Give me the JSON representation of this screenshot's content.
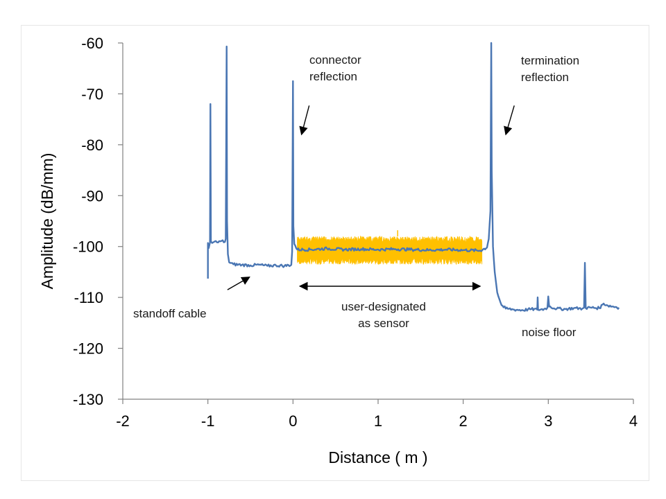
{
  "chart_data": {
    "type": "line",
    "xlabel": "Distance ( m )",
    "ylabel": "Amplitude (dB/mm)",
    "xlim": [
      -2,
      4
    ],
    "ylim": [
      -130,
      -60
    ],
    "x_ticks": [
      "-2",
      "-1",
      "0",
      "1",
      "2",
      "3",
      "4"
    ],
    "y_ticks": [
      "-60",
      "-70",
      "-80",
      "-90",
      "-100",
      "-110",
      "-120",
      "-130"
    ],
    "grid": false,
    "legend": "none",
    "colors": {
      "trace": "#4a76b3",
      "sensor_band": "#ffc000",
      "axis": "#808080",
      "arrow": "#000000"
    },
    "series": [
      {
        "role": "main-trace",
        "points": [
          [
            -1.0,
            -106.3
          ],
          [
            -1.0,
            -99.3
          ],
          [
            -0.99,
            -100.3
          ],
          [
            -0.975,
            -99.2
          ],
          [
            -0.97,
            -72.0
          ],
          [
            -0.965,
            -99.0
          ],
          [
            -0.95,
            -99.3
          ],
          [
            -0.92,
            -99.0
          ],
          [
            -0.88,
            -99.2
          ],
          [
            -0.84,
            -98.9
          ],
          [
            -0.8,
            -99.1
          ],
          [
            -0.79,
            -98.5
          ],
          [
            -0.78,
            -60.7
          ],
          [
            -0.775,
            -95.0
          ],
          [
            -0.765,
            -101.5
          ],
          [
            -0.75,
            -103.1
          ],
          [
            -0.7,
            -103.5
          ],
          [
            -0.6,
            -103.6
          ],
          [
            -0.5,
            -103.7
          ],
          [
            -0.4,
            -103.6
          ],
          [
            -0.3,
            -103.8
          ],
          [
            -0.2,
            -103.7
          ],
          [
            -0.1,
            -103.8
          ],
          [
            -0.02,
            -103.6
          ],
          [
            -0.01,
            -101.0
          ],
          [
            0.0,
            -67.5
          ],
          [
            0.005,
            -96.0
          ],
          [
            0.015,
            -99.5
          ],
          [
            0.05,
            -100.6
          ],
          [
            0.2,
            -100.6
          ],
          [
            0.4,
            -100.4
          ],
          [
            0.6,
            -100.6
          ],
          [
            0.8,
            -100.5
          ],
          [
            1.0,
            -100.6
          ],
          [
            1.2,
            -100.5
          ],
          [
            1.4,
            -100.6
          ],
          [
            1.6,
            -100.7
          ],
          [
            1.8,
            -100.6
          ],
          [
            2.0,
            -100.7
          ],
          [
            2.2,
            -100.8
          ],
          [
            2.28,
            -100.2
          ],
          [
            2.3,
            -98.5
          ],
          [
            2.32,
            -93.0
          ],
          [
            2.33,
            -60.0
          ],
          [
            2.335,
            -85.0
          ],
          [
            2.35,
            -100.0
          ],
          [
            2.37,
            -105.0
          ],
          [
            2.4,
            -109.0
          ],
          [
            2.45,
            -111.5
          ],
          [
            2.5,
            -112.2
          ],
          [
            2.6,
            -112.4
          ],
          [
            2.7,
            -112.5
          ],
          [
            2.8,
            -112.3
          ],
          [
            2.87,
            -112.4
          ],
          [
            2.875,
            -110.0
          ],
          [
            2.88,
            -112.4
          ],
          [
            2.95,
            -112.3
          ],
          [
            2.99,
            -112.0
          ],
          [
            3.0,
            -109.8
          ],
          [
            3.01,
            -111.8
          ],
          [
            3.1,
            -112.2
          ],
          [
            3.2,
            -112.3
          ],
          [
            3.3,
            -112.1
          ],
          [
            3.4,
            -112.2
          ],
          [
            3.42,
            -112.0
          ],
          [
            3.43,
            -103.2
          ],
          [
            3.44,
            -112.1
          ],
          [
            3.5,
            -112.0
          ],
          [
            3.6,
            -112.1
          ],
          [
            3.65,
            -111.2
          ],
          [
            3.7,
            -111.6
          ],
          [
            3.8,
            -111.9
          ],
          [
            3.83,
            -112.0
          ]
        ]
      },
      {
        "role": "sensor-band",
        "x_range": [
          0.05,
          2.22
        ],
        "y_range": [
          -103.5,
          -98.0
        ],
        "spike": [
          1.23,
          -96.8
        ]
      }
    ],
    "annotations": [
      {
        "name": "connector",
        "lines": [
          "connector",
          "reflection"
        ],
        "arrow_from": [
          0.19,
          -72.3
        ],
        "arrow_to": [
          0.1,
          -78.0
        ]
      },
      {
        "name": "termination",
        "lines": [
          "termination",
          "reflection"
        ],
        "arrow_from": [
          2.6,
          -72.3
        ],
        "arrow_to": [
          2.5,
          -78.0
        ]
      },
      {
        "name": "standoff",
        "lines": [
          "standoff cable"
        ],
        "arrow_from": [
          -0.77,
          -108.5
        ],
        "arrow_to": [
          -0.51,
          -106.0
        ]
      },
      {
        "name": "sensor",
        "lines": [
          "user-designated",
          "as sensor"
        ],
        "arrow_from": [
          0.08,
          -107.8
        ],
        "arrow_to": [
          2.2,
          -107.8
        ],
        "double_headed": true
      },
      {
        "name": "noise-floor",
        "lines": [
          "noise floor"
        ]
      }
    ]
  }
}
